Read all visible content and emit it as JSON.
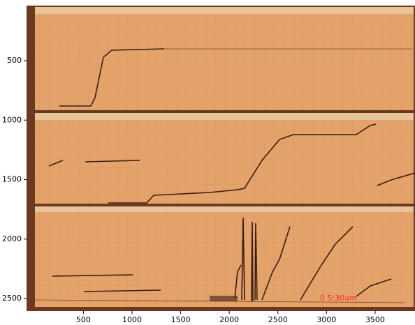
{
  "chart_data": {
    "type": "image",
    "xlim": [
      -85,
      3910
    ],
    "ylim": [
      2605,
      37
    ],
    "xticks": [
      500,
      1000,
      1500,
      2000,
      2500,
      3000,
      3500
    ],
    "yticks": [
      500,
      1000,
      1500,
      2000,
      2500
    ],
    "annotation": "0   5:30am",
    "annotation_color": "#ff2a1a"
  }
}
